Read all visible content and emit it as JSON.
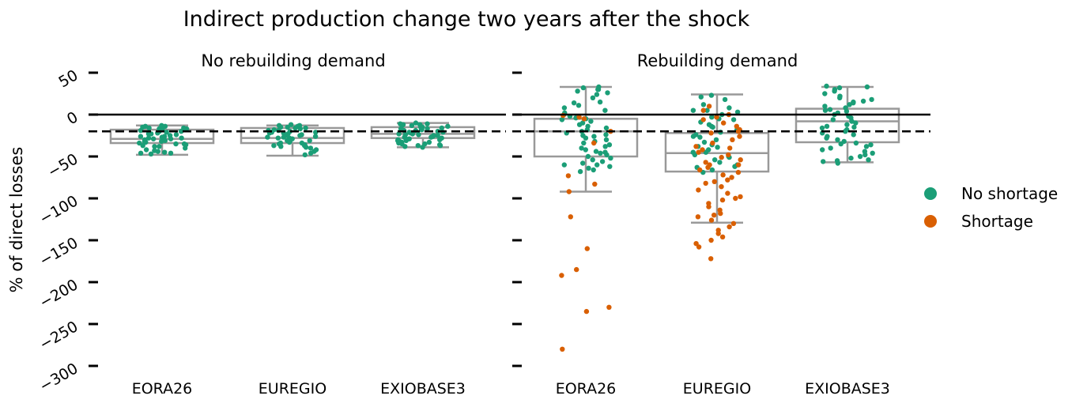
{
  "chart_data": {
    "type": "box+strip",
    "title": "Indirect production change two years after the shock",
    "ylabel": "% of direct losses",
    "ylim": [
      -300,
      55
    ],
    "yticks": [
      50,
      0,
      -50,
      -100,
      -150,
      -200,
      -250,
      -300
    ],
    "ytick_labels": [
      "50",
      "0",
      "−50",
      "−100",
      "−150",
      "−200",
      "−250",
      "−300"
    ],
    "categories": [
      "EORA26",
      "EUREGIO",
      "EXIOBASE3"
    ],
    "reference_lines": [
      {
        "value": 0,
        "style": "solid"
      },
      {
        "value": -20,
        "style": "dashed"
      }
    ],
    "legend": {
      "position": "right",
      "items": [
        {
          "label": "No shortage",
          "color": "#1b9e77"
        },
        {
          "label": "Shortage",
          "color": "#d95f02"
        }
      ]
    },
    "panels": [
      {
        "title": "No rebuilding demand",
        "boxes": [
          {
            "category": "EORA26",
            "whisker_low": -48,
            "q1": -34,
            "median": -29,
            "q3": -18,
            "whisker_high": -13
          },
          {
            "category": "EUREGIO",
            "whisker_low": -49,
            "q1": -34,
            "median": -28,
            "q3": -16,
            "whisker_high": -13
          },
          {
            "category": "EXIOBASE3",
            "whisker_low": -39,
            "q1": -28,
            "median": -23,
            "q3": -15,
            "whisker_high": -10
          }
        ],
        "points": [
          {
            "category": "EORA26",
            "group": "No shortage",
            "values": [
              -13,
              -14,
              -15,
              -16,
              -17,
              -18,
              -19,
              -20,
              -21,
              -22,
              -23,
              -24,
              -25,
              -26,
              -27,
              -28,
              -29,
              -30,
              -31,
              -32,
              -33,
              -34,
              -35,
              -36,
              -37,
              -38,
              -40,
              -42,
              -44,
              -45,
              -46,
              -47,
              -14,
              -17,
              -20,
              -23,
              -26,
              -29,
              -32,
              -35,
              -38,
              -43,
              -46,
              -16,
              -22,
              -28
            ]
          },
          {
            "category": "EUREGIO",
            "group": "No shortage",
            "values": [
              -12,
              -13,
              -14,
              -15,
              -16,
              -17,
              -18,
              -19,
              -20,
              -21,
              -22,
              -23,
              -24,
              -25,
              -26,
              -27,
              -28,
              -29,
              -30,
              -31,
              -32,
              -33,
              -34,
              -35,
              -36,
              -37,
              -38,
              -39,
              -40,
              -42,
              -44,
              -46,
              -48,
              -13,
              -16,
              -19,
              -22,
              -25,
              -28,
              -31,
              -34,
              -37,
              -15,
              -21,
              -27
            ]
          },
          {
            "category": "EXIOBASE3",
            "group": "No shortage",
            "values": [
              -10,
              -11,
              -12,
              -13,
              -14,
              -15,
              -16,
              -17,
              -18,
              -19,
              -20,
              -21,
              -22,
              -23,
              -24,
              -25,
              -26,
              -27,
              -28,
              -29,
              -30,
              -31,
              -32,
              -33,
              -34,
              -35,
              -36,
              -37,
              -38,
              -39,
              -11,
              -13,
              -15,
              -17,
              -19,
              -21,
              -23,
              -25,
              -27,
              -29,
              -31,
              -33,
              -35,
              -37,
              -12,
              -18,
              -24,
              -30
            ]
          }
        ]
      },
      {
        "title": "Rebuilding demand",
        "boxes": [
          {
            "category": "EORA26",
            "whisker_low": -92,
            "q1": -50,
            "median": -20,
            "q3": -5,
            "whisker_high": 33
          },
          {
            "category": "EUREGIO",
            "whisker_low": -129,
            "q1": -68,
            "median": -46,
            "q3": -22,
            "whisker_high": 24
          },
          {
            "category": "EXIOBASE3",
            "whisker_low": -57,
            "q1": -33,
            "median": -8,
            "q3": 7,
            "whisker_high": 33
          }
        ],
        "points": [
          {
            "category": "EORA26",
            "group": "No shortage",
            "values": [
              33,
              32,
              30,
              28,
              26,
              24,
              20,
              14,
              11,
              8,
              5,
              2,
              0,
              -2,
              -4,
              -6,
              -8,
              -10,
              -12,
              -14,
              -16,
              -18,
              -20,
              -22,
              -24,
              -26,
              -28,
              -30,
              -32,
              -34,
              -36,
              -38,
              -40,
              -42,
              -44,
              -46,
              -48,
              -50,
              -52,
              -54,
              -56,
              -58,
              -60,
              -62,
              -64,
              -66,
              -68,
              30,
              15,
              -5,
              -25,
              -45,
              -60
            ]
          },
          {
            "category": "EORA26",
            "group": "Shortage",
            "values": [
              -1,
              -3,
              -5,
              -20,
              -34,
              -73,
              -83,
              -92,
              -122,
              -160,
              -185,
              -192,
              -230,
              -235,
              -280
            ]
          },
          {
            "category": "EUREGIO",
            "group": "No shortage",
            "values": [
              23,
              21,
              18,
              12,
              8,
              5,
              3,
              0,
              -3,
              -6,
              -9,
              -12,
              -15,
              -18,
              -21,
              -24,
              -27,
              -30,
              -33,
              -36,
              -39,
              -42,
              -45,
              -48,
              -51,
              -54,
              -57,
              -60,
              -63,
              -66,
              -69,
              -14,
              -26,
              -38,
              -50,
              -62,
              5,
              -5,
              -45
            ]
          },
          {
            "category": "EUREGIO",
            "group": "Shortage",
            "values": [
              10,
              5,
              0,
              -3,
              -6,
              -10,
              -14,
              -18,
              -22,
              -26,
              -30,
              -34,
              -38,
              -42,
              -45,
              -48,
              -51,
              -54,
              -57,
              -60,
              -63,
              -66,
              -69,
              -72,
              -75,
              -78,
              -82,
              -86,
              -90,
              -94,
              -98,
              -102,
              -106,
              -110,
              -114,
              -118,
              -122,
              -126,
              -130,
              -134,
              -138,
              -142,
              -146,
              -150,
              -154,
              -158,
              -172,
              -20,
              -40,
              -60,
              -80,
              -100,
              -120
            ]
          },
          {
            "category": "EXIOBASE3",
            "group": "No shortage",
            "values": [
              34,
              33,
              32,
              30,
              28,
              25,
              22,
              20,
              18,
              16,
              14,
              12,
              10,
              8,
              6,
              4,
              2,
              0,
              -2,
              -4,
              -6,
              -8,
              -10,
              -12,
              -14,
              -16,
              -18,
              -20,
              -22,
              -24,
              -26,
              -28,
              -30,
              -32,
              -34,
              -36,
              -38,
              -40,
              -42,
              -44,
              -46,
              -48,
              -50,
              -52,
              -54,
              -56,
              -58,
              15,
              5,
              -15,
              -35,
              -55
            ]
          }
        ]
      }
    ]
  }
}
